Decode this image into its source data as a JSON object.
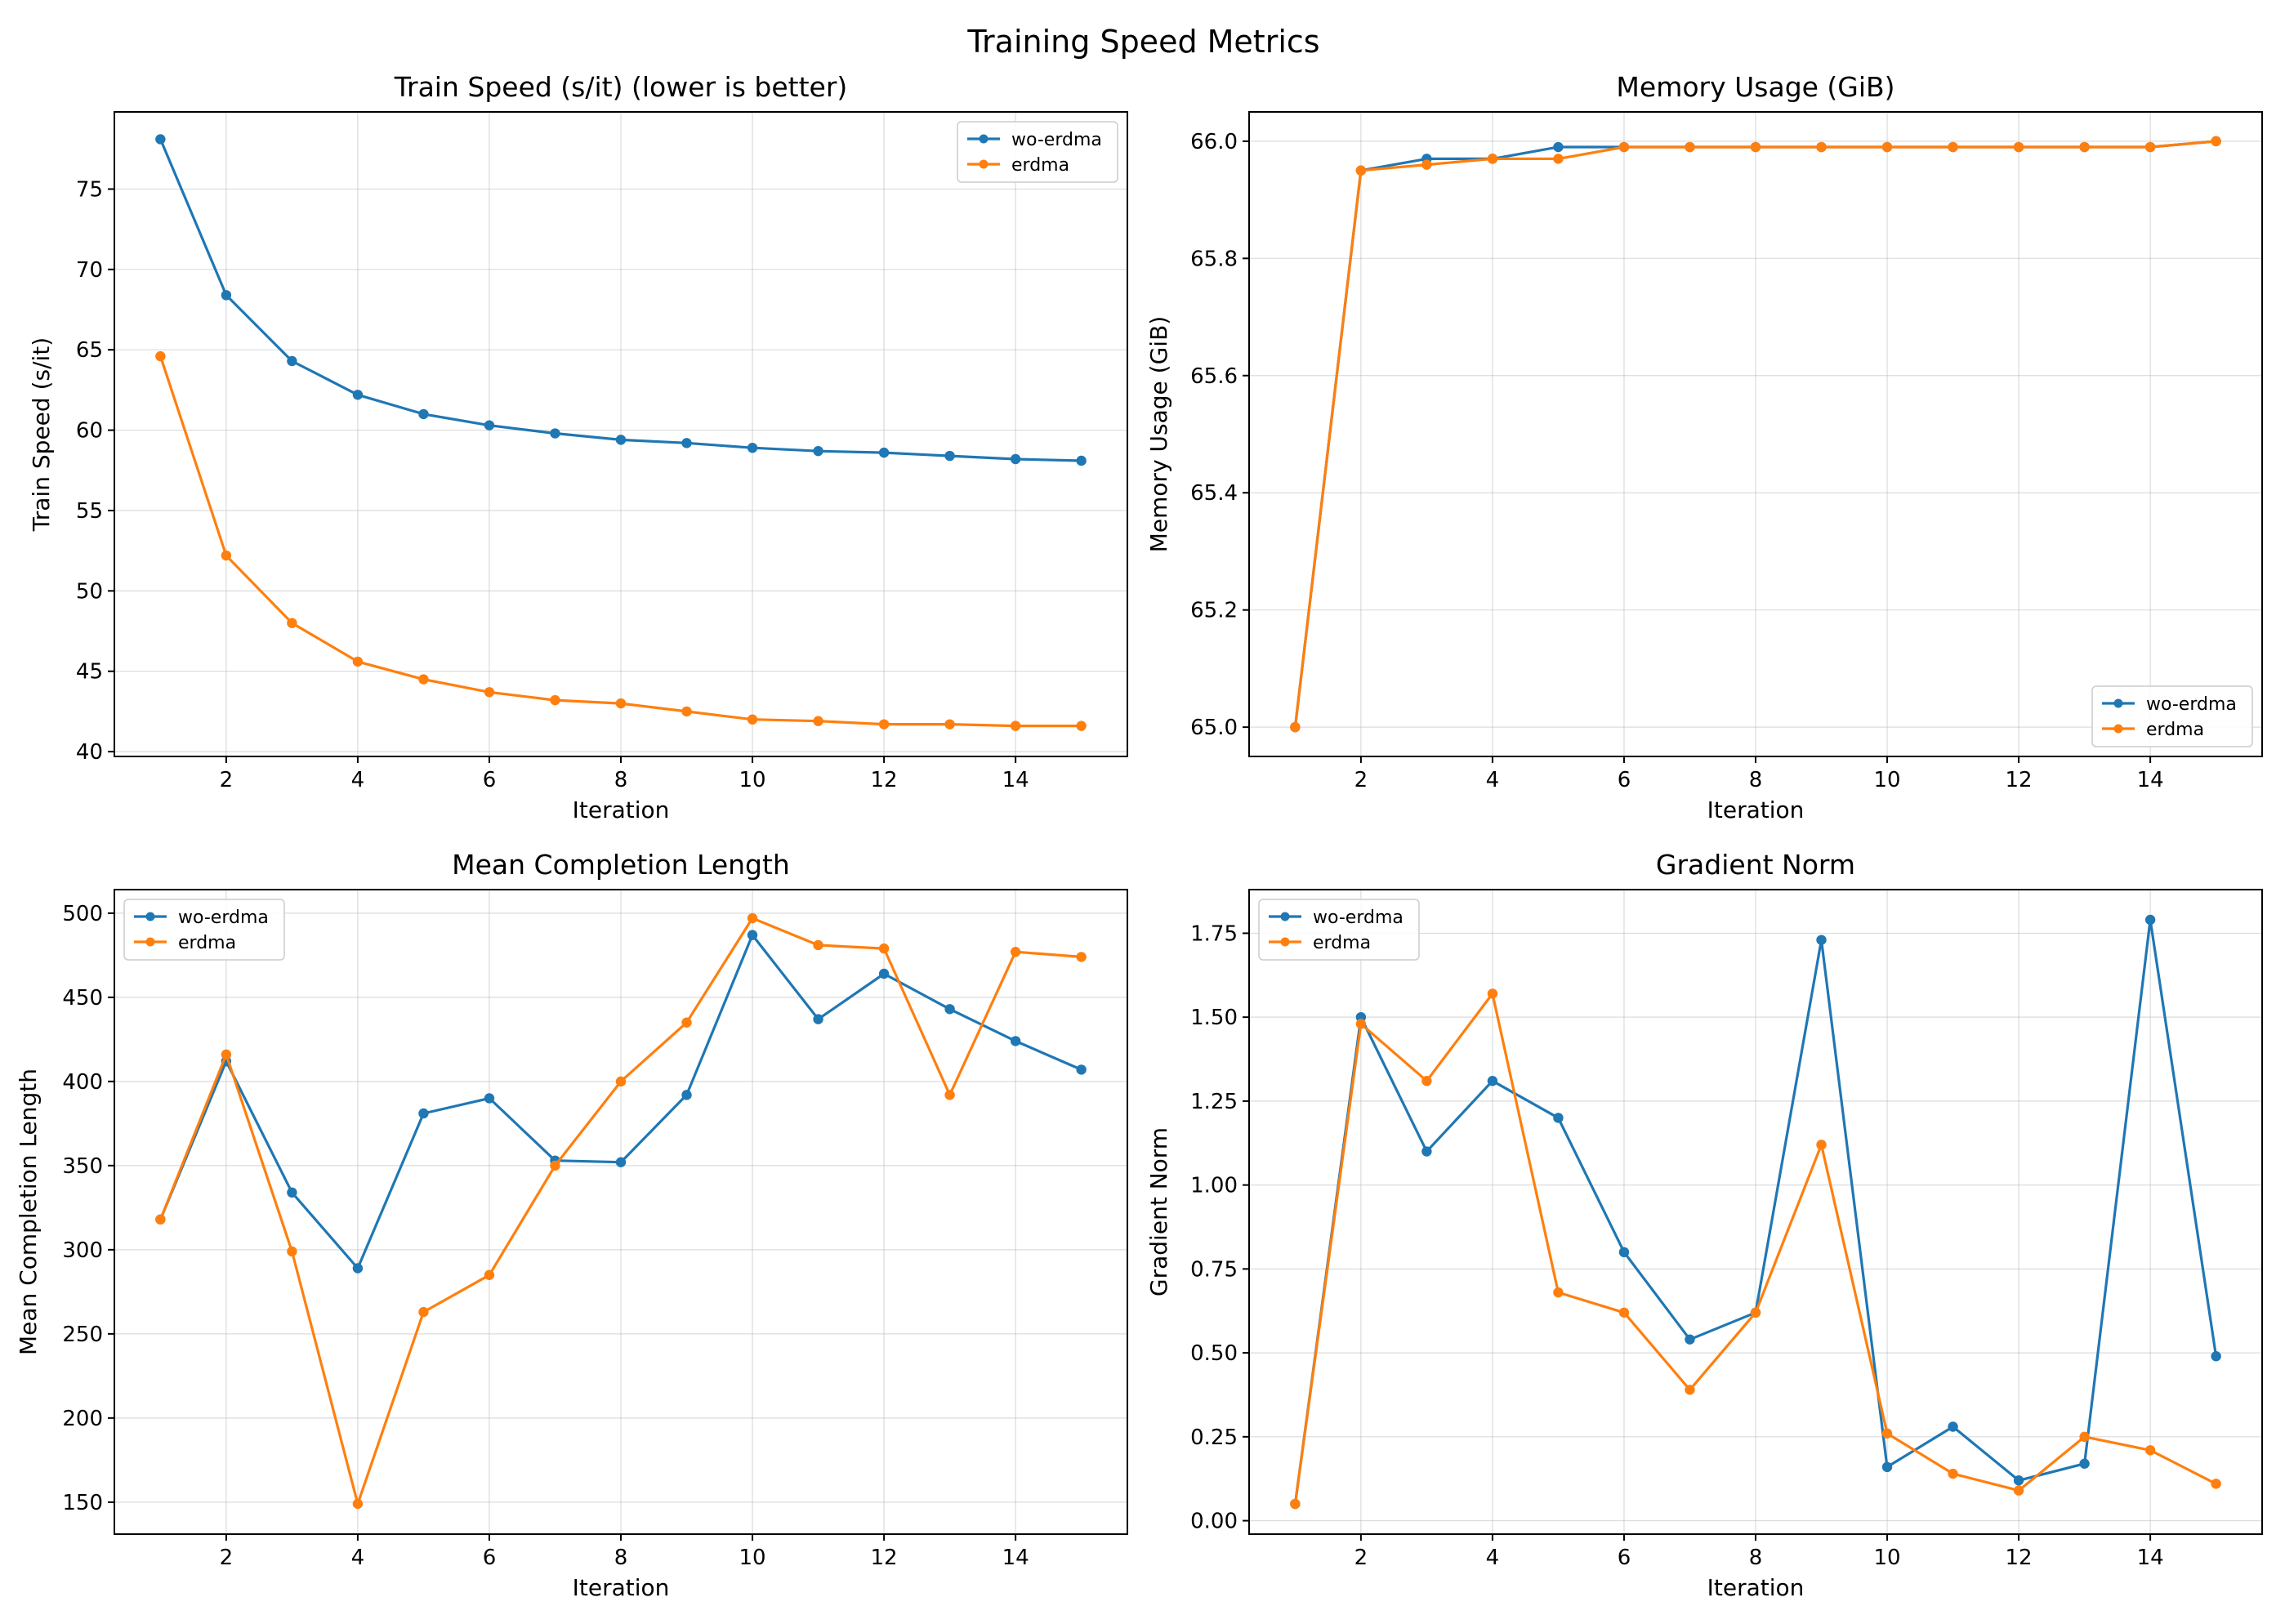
{
  "figure": {
    "suptitle": "Training Speed Metrics"
  },
  "chart_data": [
    {
      "type": "line",
      "title": "Train Speed (s/it) (lower is better)",
      "xlabel": "Iteration",
      "ylabel": "Train Speed (s/it)",
      "xlim": [
        0.3,
        15.7
      ],
      "ylim": [
        39.7,
        79.8
      ],
      "xticks": [
        2,
        4,
        6,
        8,
        10,
        12,
        14
      ],
      "yticks": [
        40,
        45,
        50,
        55,
        60,
        65,
        70,
        75
      ],
      "ytick_labels": [
        "40",
        "45",
        "50",
        "55",
        "60",
        "65",
        "70",
        "75"
      ],
      "grid": true,
      "legend": "upper right",
      "x": [
        1,
        2,
        3,
        4,
        5,
        6,
        7,
        8,
        9,
        10,
        11,
        12,
        13,
        14,
        15
      ],
      "series": [
        {
          "name": "wo-erdma",
          "color": "#1f77b4",
          "values": [
            78.1,
            68.4,
            64.3,
            62.2,
            61.0,
            60.3,
            59.8,
            59.4,
            59.2,
            58.9,
            58.7,
            58.6,
            58.4,
            58.2,
            58.1
          ]
        },
        {
          "name": "erdma",
          "color": "#ff7f0e",
          "values": [
            64.6,
            52.2,
            48.0,
            45.6,
            44.5,
            43.7,
            43.2,
            43.0,
            42.5,
            42.0,
            41.9,
            41.7,
            41.7,
            41.6,
            41.6
          ]
        }
      ]
    },
    {
      "type": "line",
      "title": "Memory Usage (GiB)",
      "xlabel": "Iteration",
      "ylabel": "Memory Usage (GiB)",
      "xlim": [
        0.3,
        15.7
      ],
      "ylim": [
        64.95,
        66.05
      ],
      "xticks": [
        2,
        4,
        6,
        8,
        10,
        12,
        14
      ],
      "yticks": [
        65.0,
        65.2,
        65.4,
        65.6,
        65.8,
        66.0
      ],
      "ytick_labels": [
        "65.0",
        "65.2",
        "65.4",
        "65.6",
        "65.8",
        "66.0"
      ],
      "grid": true,
      "legend": "lower right",
      "x": [
        1,
        2,
        3,
        4,
        5,
        6,
        7,
        8,
        9,
        10,
        11,
        12,
        13,
        14,
        15
      ],
      "series": [
        {
          "name": "wo-erdma",
          "color": "#1f77b4",
          "values": [
            65.0,
            65.95,
            65.97,
            65.97,
            65.99,
            65.99,
            65.99,
            65.99,
            65.99,
            65.99,
            65.99,
            65.99,
            65.99,
            65.99,
            66.0
          ]
        },
        {
          "name": "erdma",
          "color": "#ff7f0e",
          "values": [
            65.0,
            65.95,
            65.96,
            65.97,
            65.97,
            65.99,
            65.99,
            65.99,
            65.99,
            65.99,
            65.99,
            65.99,
            65.99,
            65.99,
            66.0
          ]
        }
      ]
    },
    {
      "type": "line",
      "title": "Mean Completion Length",
      "xlabel": "Iteration",
      "ylabel": "Mean Completion Length",
      "xlim": [
        0.3,
        15.7
      ],
      "ylim": [
        131,
        514
      ],
      "xticks": [
        2,
        4,
        6,
        8,
        10,
        12,
        14
      ],
      "yticks": [
        150,
        200,
        250,
        300,
        350,
        400,
        450,
        500
      ],
      "ytick_labels": [
        "150",
        "200",
        "250",
        "300",
        "350",
        "400",
        "450",
        "500"
      ],
      "grid": true,
      "legend": "upper left",
      "x": [
        1,
        2,
        3,
        4,
        5,
        6,
        7,
        8,
        9,
        10,
        11,
        12,
        13,
        14,
        15
      ],
      "series": [
        {
          "name": "wo-erdma",
          "color": "#1f77b4",
          "values": [
            318,
            412,
            334,
            289,
            381,
            390,
            353,
            352,
            392,
            487,
            437,
            464,
            443,
            424,
            407
          ]
        },
        {
          "name": "erdma",
          "color": "#ff7f0e",
          "values": [
            318,
            416,
            299,
            149,
            263,
            285,
            350,
            400,
            435,
            497,
            481,
            479,
            392,
            477,
            474
          ]
        }
      ]
    },
    {
      "type": "line",
      "title": "Gradient Norm",
      "xlabel": "Iteration",
      "ylabel": "Gradient Norm",
      "xlim": [
        0.3,
        15.7
      ],
      "ylim": [
        -0.04,
        1.88
      ],
      "xticks": [
        2,
        4,
        6,
        8,
        10,
        12,
        14
      ],
      "yticks": [
        0.0,
        0.25,
        0.5,
        0.75,
        1.0,
        1.25,
        1.5,
        1.75
      ],
      "ytick_labels": [
        "0.00",
        "0.25",
        "0.50",
        "0.75",
        "1.00",
        "1.25",
        "1.50",
        "1.75"
      ],
      "grid": true,
      "legend": "upper left",
      "x": [
        1,
        2,
        3,
        4,
        5,
        6,
        7,
        8,
        9,
        10,
        11,
        12,
        13,
        14,
        15
      ],
      "series": [
        {
          "name": "wo-erdma",
          "color": "#1f77b4",
          "values": [
            0.05,
            1.5,
            1.1,
            1.31,
            1.2,
            0.8,
            0.54,
            0.62,
            1.73,
            0.16,
            0.28,
            0.12,
            0.17,
            1.79,
            0.49
          ]
        },
        {
          "name": "erdma",
          "color": "#ff7f0e",
          "values": [
            0.05,
            1.48,
            1.31,
            1.57,
            0.68,
            0.62,
            0.39,
            0.62,
            1.12,
            0.26,
            0.14,
            0.09,
            0.25,
            0.21,
            0.11
          ]
        }
      ]
    }
  ]
}
